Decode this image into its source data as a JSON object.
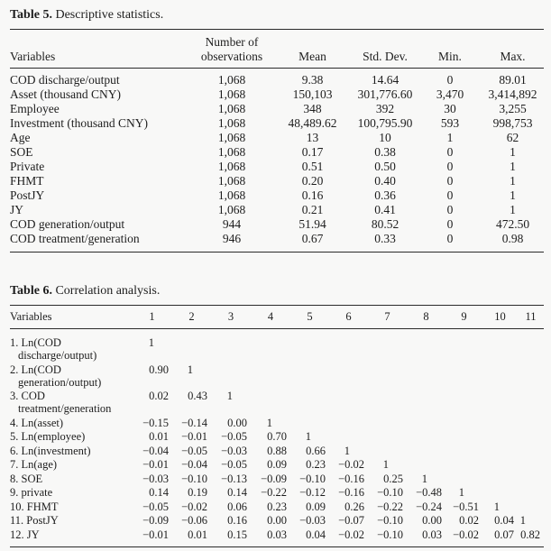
{
  "table5": {
    "title_bold": "Table 5.",
    "title_rest": " Descriptive statistics.",
    "columns": [
      "Variables",
      "Number of observations",
      "Mean",
      "Std. Dev.",
      "Min.",
      "Max."
    ],
    "rows": [
      {
        "label": "COD discharge/output",
        "values": [
          "1,068",
          "9.38",
          "14.64",
          "0",
          "89.01"
        ]
      },
      {
        "label": "Asset (thousand CNY)",
        "values": [
          "1,068",
          "150,103",
          "301,776.60",
          "3,470",
          "3,414,892"
        ]
      },
      {
        "label": "Employee",
        "values": [
          "1,068",
          "348",
          "392",
          "30",
          "3,255"
        ]
      },
      {
        "label": "Investment (thousand CNY)",
        "values": [
          "1,068",
          "48,489.62",
          "100,795.90",
          "593",
          "998,753"
        ]
      },
      {
        "label": "Age",
        "values": [
          "1,068",
          "13",
          "10",
          "1",
          "62"
        ]
      },
      {
        "label": "SOE",
        "values": [
          "1,068",
          "0.17",
          "0.38",
          "0",
          "1"
        ]
      },
      {
        "label": "Private",
        "values": [
          "1,068",
          "0.51",
          "0.50",
          "0",
          "1"
        ]
      },
      {
        "label": "FHMT",
        "values": [
          "1,068",
          "0.20",
          "0.40",
          "0",
          "1"
        ]
      },
      {
        "label": "PostJY",
        "values": [
          "1,068",
          "0.16",
          "0.36",
          "0",
          "1"
        ]
      },
      {
        "label": "JY",
        "values": [
          "1,068",
          "0.21",
          "0.41",
          "0",
          "1"
        ]
      },
      {
        "label": "COD generation/output",
        "values": [
          "944",
          "51.94",
          "80.52",
          "0",
          "472.50"
        ]
      },
      {
        "label": "COD treatment/generation",
        "values": [
          "946",
          "0.67",
          "0.33",
          "0",
          "0.98"
        ]
      }
    ]
  },
  "table6": {
    "title_bold": "Table 6.",
    "title_rest": " Correlation analysis.",
    "header": [
      "Variables",
      "1",
      "2",
      "3",
      "4",
      "5",
      "6",
      "7",
      "8",
      "9",
      "10",
      "11"
    ],
    "rows": [
      {
        "label": "1. Ln(COD discharge/output)",
        "values": [
          "1"
        ]
      },
      {
        "label": "2. Ln(COD generation/output)",
        "values": [
          "0.90",
          "1"
        ]
      },
      {
        "label": "3. COD treatment/generation",
        "values": [
          "0.02",
          "0.43",
          "1"
        ]
      },
      {
        "label": "4. Ln(asset)",
        "values": [
          "−0.15",
          "−0.14",
          "0.00",
          "1"
        ]
      },
      {
        "label": "5. Ln(employee)",
        "values": [
          "0.01",
          "−0.01",
          "−0.05",
          "0.70",
          "1"
        ]
      },
      {
        "label": "6. Ln(investment)",
        "values": [
          "−0.04",
          "−0.05",
          "−0.03",
          "0.88",
          "0.66",
          "1"
        ]
      },
      {
        "label": "7. Ln(age)",
        "values": [
          "−0.01",
          "−0.04",
          "−0.05",
          "0.09",
          "0.23",
          "−0.02",
          "1"
        ]
      },
      {
        "label": "8. SOE",
        "values": [
          "−0.03",
          "−0.10",
          "−0.13",
          "−0.09",
          "−0.10",
          "−0.16",
          "0.25",
          "1"
        ]
      },
      {
        "label": "9. private",
        "values": [
          "0.14",
          "0.19",
          "0.14",
          "−0.22",
          "−0.12",
          "−0.16",
          "−0.10",
          "−0.48",
          "1"
        ]
      },
      {
        "label": "10. FHMT",
        "values": [
          "−0.05",
          "−0.02",
          "0.06",
          "0.23",
          "0.09",
          "0.26",
          "−0.22",
          "−0.24",
          "−0.51",
          "1"
        ]
      },
      {
        "label": "11. PostJY",
        "values": [
          "−0.09",
          "−0.06",
          "0.16",
          "0.00",
          "−0.03",
          "−0.07",
          "−0.10",
          "0.00",
          "0.02",
          "0.04",
          "1"
        ]
      },
      {
        "label": "12. JY",
        "values": [
          "−0.01",
          "0.01",
          "0.15",
          "0.03",
          "0.04",
          "−0.02",
          "−0.10",
          "0.03",
          "−0.02",
          "0.07",
          "0.82"
        ]
      }
    ]
  }
}
